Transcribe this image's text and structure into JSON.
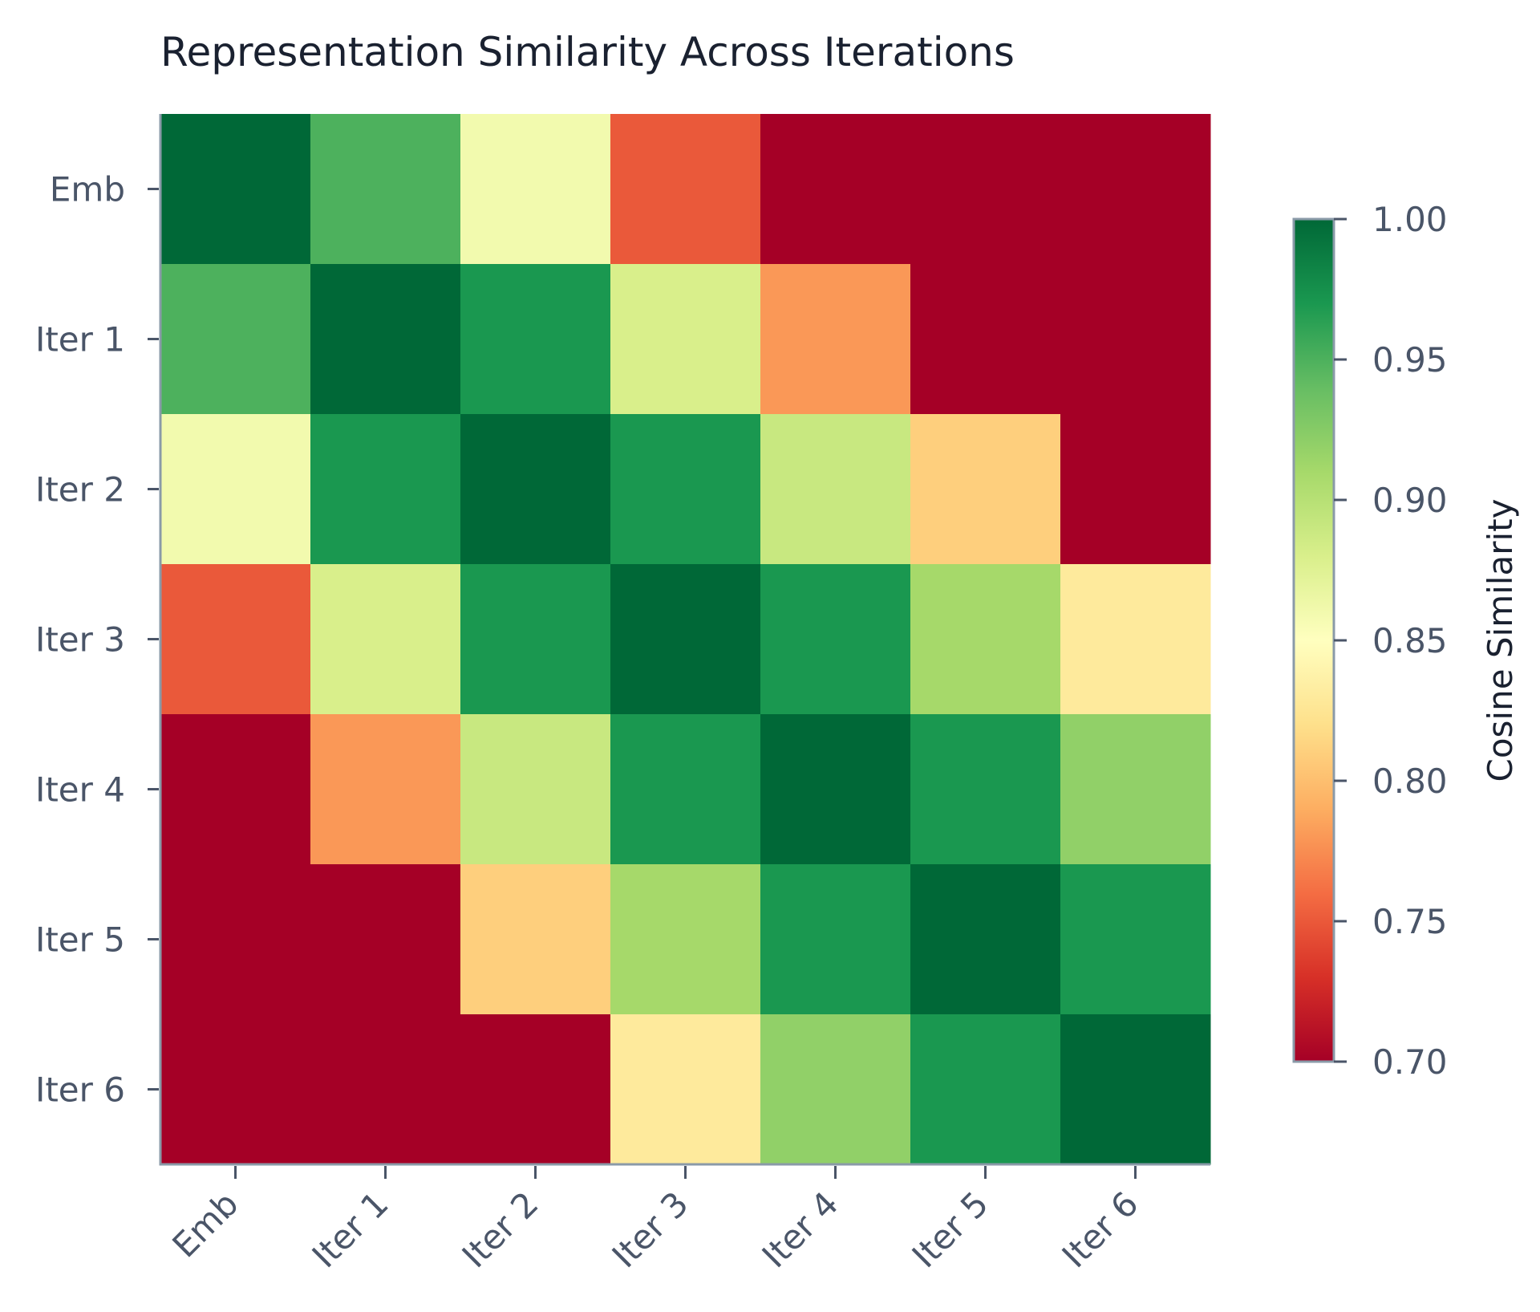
{
  "chart_data": {
    "type": "heatmap",
    "title": "Representation Similarity Across Iterations",
    "rows": [
      "Emb",
      "Iter 1",
      "Iter 2",
      "Iter 3",
      "Iter 4",
      "Iter 5",
      "Iter 6"
    ],
    "cols": [
      "Emb",
      "Iter 1",
      "Iter 2",
      "Iter 3",
      "Iter 4",
      "Iter 5",
      "Iter 6"
    ],
    "values": [
      [
        1.0,
        0.95,
        0.86,
        0.75,
        0.66,
        0.6,
        0.55
      ],
      [
        0.95,
        1.0,
        0.97,
        0.88,
        0.78,
        0.68,
        0.62
      ],
      [
        0.86,
        0.97,
        1.0,
        0.97,
        0.89,
        0.81,
        0.7
      ],
      [
        0.75,
        0.88,
        0.97,
        1.0,
        0.97,
        0.91,
        0.83
      ],
      [
        0.66,
        0.78,
        0.89,
        0.97,
        1.0,
        0.97,
        0.92
      ],
      [
        0.6,
        0.68,
        0.81,
        0.91,
        0.97,
        1.0,
        0.97
      ],
      [
        0.55,
        0.62,
        0.7,
        0.83,
        0.92,
        0.97,
        1.0
      ]
    ],
    "colormap": "RdYlGn",
    "colorbar": {
      "label": "Cosine Similarity",
      "min": 0.7,
      "max": 1.0,
      "ticks": [
        "0.70",
        "0.75",
        "0.80",
        "0.85",
        "0.90",
        "0.95",
        "1.00"
      ]
    },
    "xlabel": "",
    "ylabel": "",
    "grid": false
  },
  "colors": {
    "text": "#1a2130",
    "tick_text": "#4a5568",
    "axis": "#8a9aa8"
  }
}
